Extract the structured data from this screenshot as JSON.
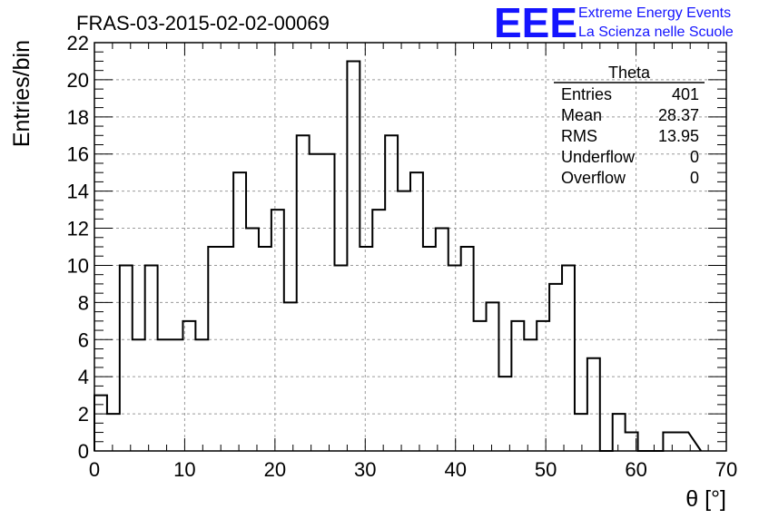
{
  "chart_data": {
    "type": "histogram",
    "title": "FRAS-03-2015-02-02-00069",
    "xlabel": "θ [°]",
    "ylabel": "Entries/bin",
    "xlim": [
      0,
      70
    ],
    "ylim": [
      0,
      22
    ],
    "grid": true,
    "x_ticks": [
      "0",
      "10",
      "20",
      "30",
      "40",
      "50",
      "60",
      "70"
    ],
    "y_ticks": [
      "0",
      "2",
      "4",
      "6",
      "8",
      "10",
      "12",
      "14",
      "16",
      "18",
      "20",
      "22"
    ],
    "bin_edges": [
      0,
      1.4,
      2.8,
      4.2,
      5.6,
      7.0,
      8.4,
      9.8,
      11.2,
      12.6,
      14.0,
      15.4,
      16.8,
      18.2,
      19.6,
      21.0,
      22.4,
      23.8,
      25.2,
      26.6,
      28.0,
      29.4,
      30.8,
      32.2,
      33.6,
      35.0,
      36.4,
      37.8,
      39.2,
      40.6,
      42.0,
      43.4,
      44.8,
      46.2,
      47.6,
      49.0,
      50.4,
      51.8,
      53.2,
      54.6,
      56.0,
      57.4,
      58.8,
      60.2,
      61.6,
      63.0,
      64.4,
      65.8
    ],
    "counts": [
      3,
      2,
      10,
      6,
      10,
      6,
      6,
      7,
      6,
      11,
      11,
      15,
      12,
      11,
      13,
      8,
      17,
      16,
      16,
      10,
      21,
      11,
      13,
      17,
      14,
      15,
      11,
      12,
      10,
      11,
      7,
      8,
      4,
      7,
      6,
      7,
      9,
      10,
      2,
      5,
      0,
      2,
      1,
      0,
      0,
      1,
      1
    ],
    "stats_box": {
      "name": "Theta",
      "rows": [
        {
          "label": "Entries",
          "value": "401"
        },
        {
          "label": "Mean",
          "value": "28.37"
        },
        {
          "label": "RMS",
          "value": "13.95"
        },
        {
          "label": "Underflow",
          "value": "0"
        },
        {
          "label": "Overflow",
          "value": "0"
        }
      ]
    }
  },
  "logo": {
    "mark": "EEE",
    "line1": "Extreme Energy Events",
    "line2": "La Scienza nelle Scuole"
  },
  "colors": {
    "logo": "#1414ff",
    "grid": "#9a9a9a",
    "line": "#000000"
  }
}
